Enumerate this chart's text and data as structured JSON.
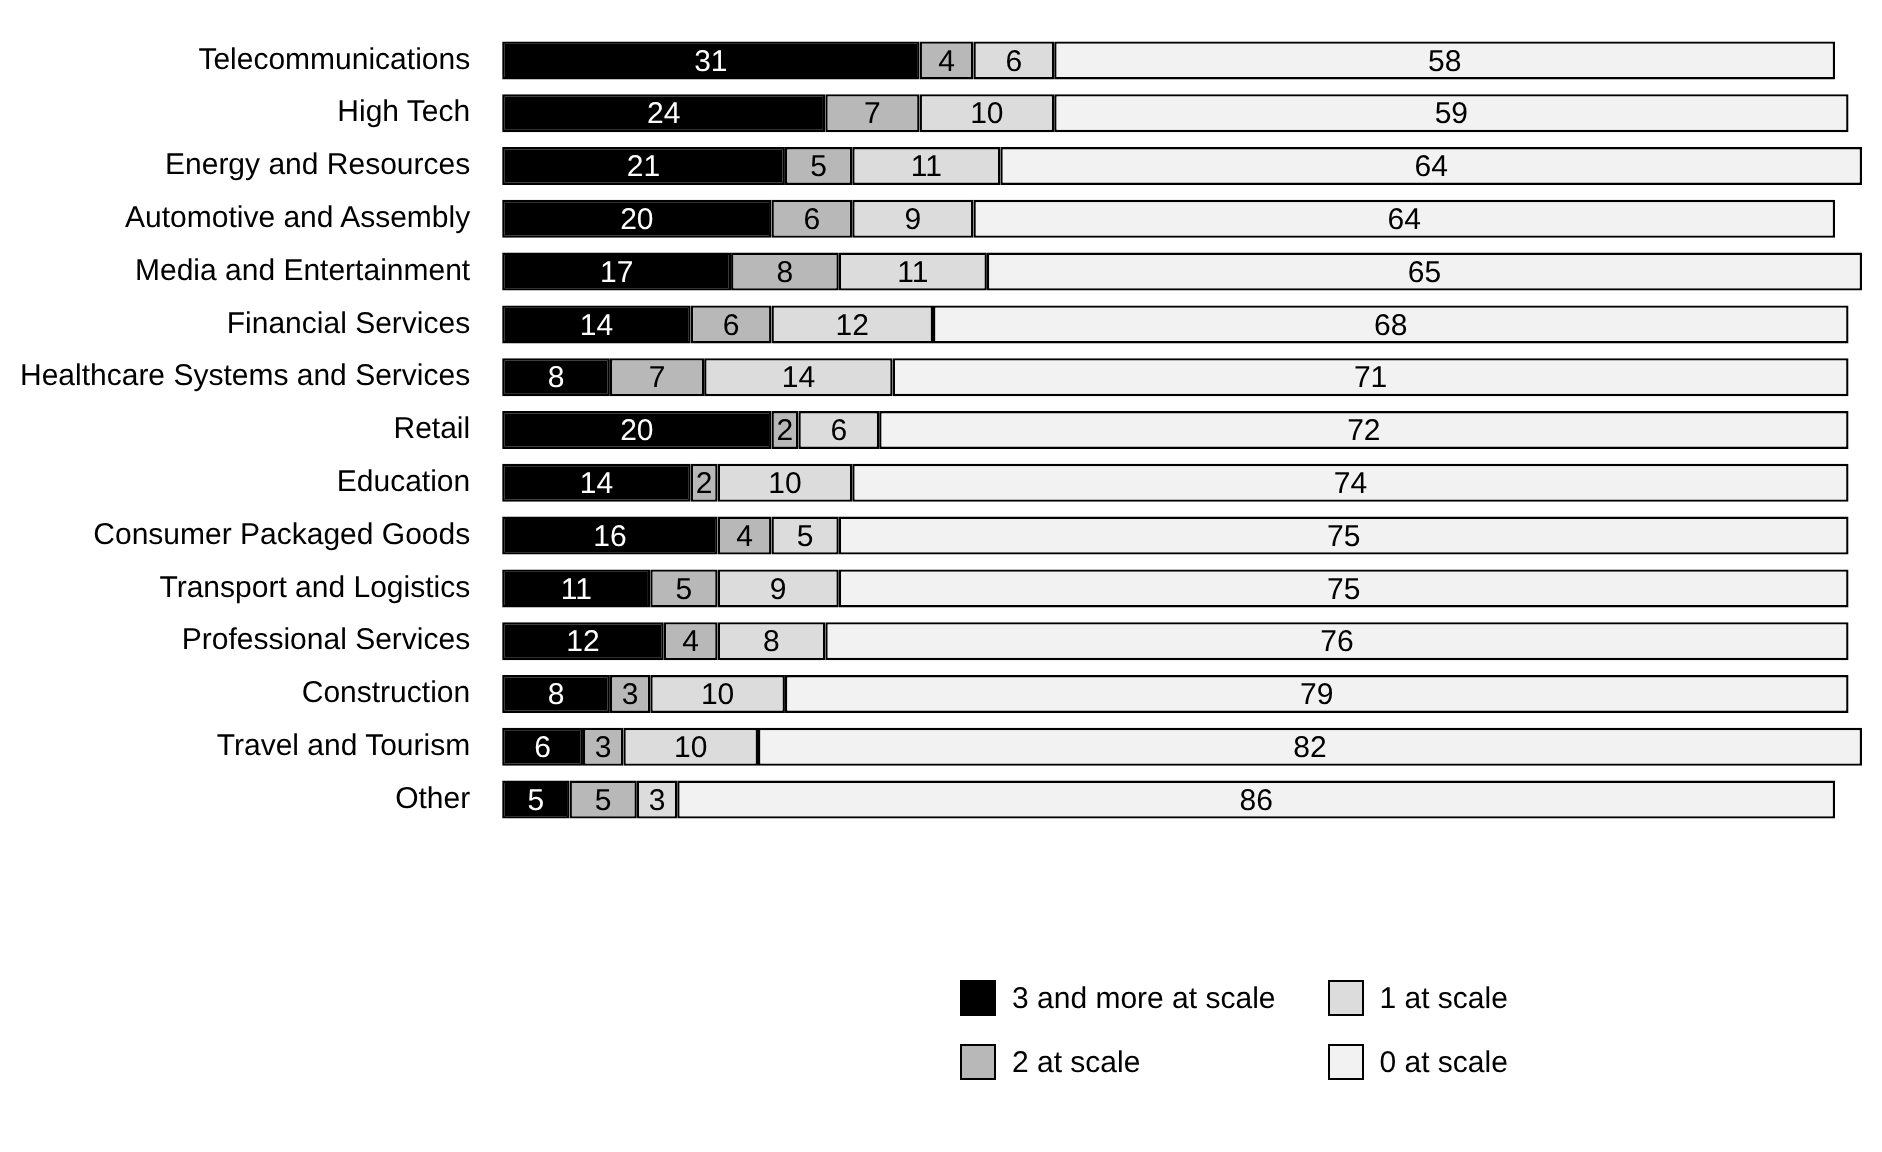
{
  "chart_data": {
    "type": "bar",
    "orientation": "horizontal",
    "stacked": true,
    "data_labels": true,
    "legend": "bottom",
    "tick_labels": "y",
    "categories": [
      "Telecommunications",
      "High Tech",
      "Energy and Resources",
      "Automotive and Assembly",
      "Media and Entertainment",
      "Financial Services",
      "Healthcare Systems and Services",
      "Retail",
      "Education",
      "Consumer Packaged Goods",
      "Transport and Logistics",
      "Professional Services",
      "Construction",
      "Travel and Tourism",
      "Other"
    ],
    "series": [
      {
        "name": "3 and more at scale",
        "color": "#000000",
        "values": [
          31,
          24,
          21,
          20,
          17,
          14,
          8,
          20,
          14,
          16,
          11,
          12,
          8,
          6,
          5
        ]
      },
      {
        "name": "2 at scale",
        "color": "#b8b8b8",
        "values": [
          4,
          7,
          5,
          6,
          8,
          6,
          7,
          2,
          2,
          4,
          5,
          4,
          3,
          3,
          5
        ]
      },
      {
        "name": "1 at scale",
        "color": "#dcdcdc",
        "values": [
          6,
          10,
          11,
          9,
          11,
          12,
          14,
          6,
          10,
          5,
          9,
          8,
          10,
          10,
          3
        ]
      },
      {
        "name": "0 at scale",
        "color": "#f2f2f2",
        "values": [
          58,
          59,
          64,
          64,
          65,
          68,
          71,
          72,
          74,
          75,
          75,
          76,
          79,
          82,
          86
        ]
      }
    ]
  }
}
